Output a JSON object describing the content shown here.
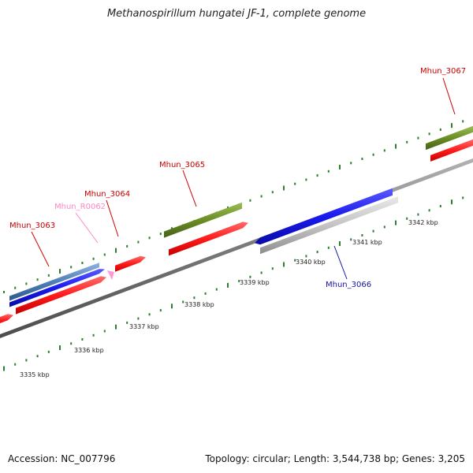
{
  "title": "Methanospirillum hungatei JF-1, complete genome",
  "footer": {
    "accession": "Accession: NC_007796",
    "summary": "Topology: circular; Length: 3,544,738 bp; Genes: 3,205"
  },
  "colors": {
    "backbone": "#7a7a7a",
    "tick": "#2f7d2f",
    "cds": "#ff1a1a",
    "blue_gene": "#1a1aee",
    "steelblue_gene": "#4f7fb8",
    "olive_gene": "#6b8e23",
    "grey_gene": "#bdbdbd",
    "rna_gene": "#ff9ad0",
    "label_red": "#cc0000",
    "label_blue": "#1414a0",
    "label_pink": "#ff88c8"
  },
  "scale_labels": [
    "3335 kbp",
    "3336 kbp",
    "3337 kbp",
    "3338 kbp",
    "3339 kbp",
    "3340 kbp",
    "3341 kbp",
    "3342 kbp"
  ],
  "gene_labels": [
    {
      "id": "lab-3063",
      "text": "Mhun_3063",
      "color": "label_red"
    },
    {
      "id": "lab-r0062",
      "text": "Mhun_R0062",
      "color": "label_pink"
    },
    {
      "id": "lab-3064",
      "text": "Mhun_3064",
      "color": "label_red"
    },
    {
      "id": "lab-3065",
      "text": "Mhun_3065",
      "color": "label_red"
    },
    {
      "id": "lab-3066",
      "text": "Mhun_3066",
      "color": "label_blue"
    },
    {
      "id": "lab-3067",
      "text": "Mhun_3067",
      "color": "label_red"
    }
  ]
}
